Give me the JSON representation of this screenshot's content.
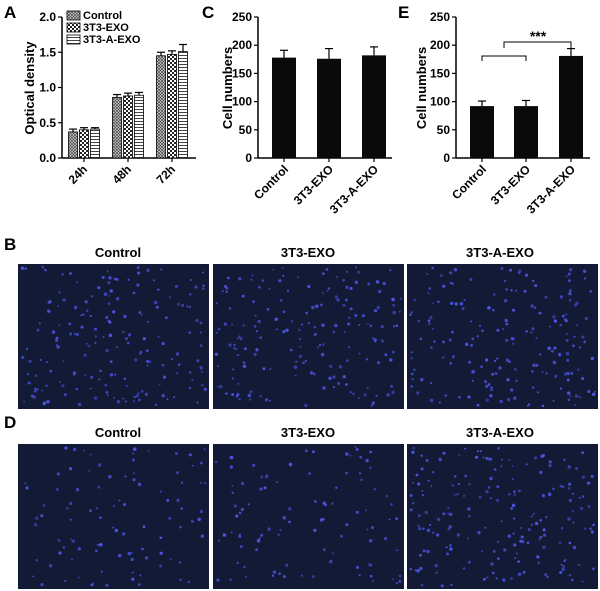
{
  "panel_labels": [
    "A",
    "B",
    "C",
    "D",
    "E"
  ],
  "colors": {
    "bar": "#0a0a0a",
    "micro_bg": "#131a35",
    "cell": "#4b54e6",
    "axis": "#000000"
  },
  "chart_data": [
    {
      "id": "A",
      "type": "bar",
      "categories": [
        "24h",
        "48h",
        "72h"
      ],
      "series": [
        {
          "name": "Control",
          "pattern": "crosshatch",
          "values": [
            0.37,
            0.86,
            1.45
          ],
          "errors": [
            0.04,
            0.04,
            0.05
          ]
        },
        {
          "name": "3T3-EXO",
          "pattern": "checker",
          "values": [
            0.4,
            0.88,
            1.47
          ],
          "errors": [
            0.03,
            0.04,
            0.05
          ]
        },
        {
          "name": "3T3-A-EXO",
          "pattern": "hlines",
          "values": [
            0.41,
            0.89,
            1.51
          ],
          "errors": [
            0.02,
            0.04,
            0.1
          ]
        }
      ],
      "ylabel": "Optical density",
      "xlabel": "",
      "ylim": [
        0,
        2.0
      ],
      "yticks": [
        "0.0",
        "0.5",
        "1.0",
        "1.5",
        "2.0"
      ],
      "legend": "top-left"
    },
    {
      "id": "C",
      "type": "bar",
      "categories": [
        "Control",
        "3T3-EXO",
        "3T3-A-EXO"
      ],
      "values": [
        178,
        176,
        182
      ],
      "errors": [
        13,
        18,
        15
      ],
      "ylabel": "Cell numbers",
      "xlabel": "",
      "ylim": [
        0,
        250
      ],
      "yticks": [
        "0",
        "50",
        "100",
        "150",
        "200",
        "250"
      ]
    },
    {
      "id": "E",
      "type": "bar",
      "categories": [
        "Control",
        "3T3-EXO",
        "3T3-A-EXO"
      ],
      "values": [
        92,
        92,
        181
      ],
      "errors": [
        9,
        10,
        13
      ],
      "ylabel": "Cell numbers",
      "xlabel": "",
      "ylim": [
        0,
        250
      ],
      "yticks": [
        "0",
        "50",
        "100",
        "150",
        "200",
        "250"
      ],
      "annotation": "***"
    }
  ],
  "micrographs": {
    "B": {
      "titles": [
        "Control",
        "3T3-EXO",
        "3T3-A-EXO"
      ],
      "cell_counts": [
        180,
        175,
        185
      ]
    },
    "D": {
      "titles": [
        "Control",
        "3T3-EXO",
        "3T3-A-EXO"
      ],
      "cell_counts": [
        95,
        95,
        190
      ]
    }
  }
}
